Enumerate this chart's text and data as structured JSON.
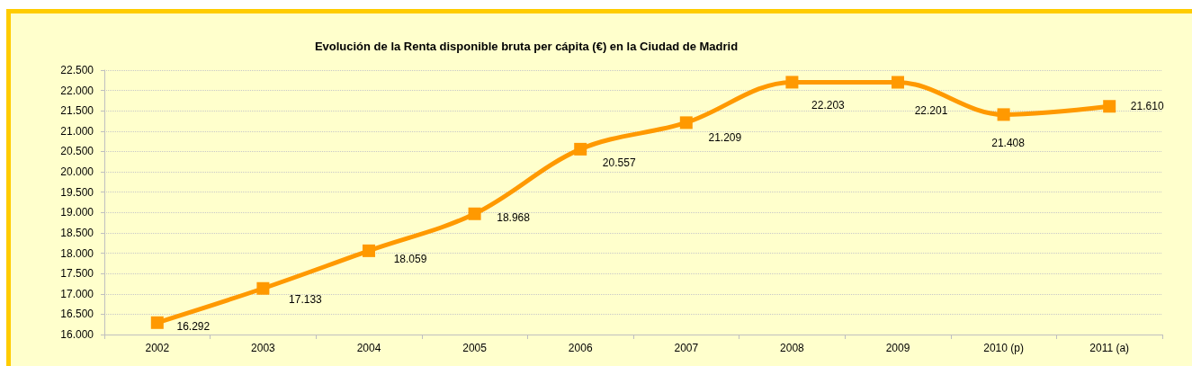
{
  "chart_data": {
    "type": "line",
    "title": "Evolución de la Renta disponible bruta per cápita (€) en la Ciudad de Madrid",
    "categories": [
      "2002",
      "2003",
      "2004",
      "2005",
      "2006",
      "2007",
      "2008",
      "2009",
      "2010 (p)",
      "2011 (a)"
    ],
    "series": [
      {
        "color": "#ff9900",
        "values": [
          16292,
          17133,
          18059,
          18968,
          20557,
          21209,
          22203,
          22201,
          21408,
          21610
        ],
        "value_labels": [
          "16.292",
          "17.133",
          "18.059",
          "18.968",
          "20.557",
          "21.209",
          "22.203",
          "22.201",
          "21.408",
          "21.610"
        ]
      }
    ],
    "ylim": [
      16000,
      22500
    ],
    "yticks": [
      {
        "value": 16000,
        "label": "16.000"
      },
      {
        "value": 16500,
        "label": "16.500"
      },
      {
        "value": 17000,
        "label": "17.000"
      },
      {
        "value": 17500,
        "label": "17.500"
      },
      {
        "value": 18000,
        "label": "18.000"
      },
      {
        "value": 18500,
        "label": "18.500"
      },
      {
        "value": 19000,
        "label": "19.000"
      },
      {
        "value": 19500,
        "label": "19.500"
      },
      {
        "value": 20000,
        "label": "20.000"
      },
      {
        "value": 20500,
        "label": "20.500"
      },
      {
        "value": 21000,
        "label": "21.000"
      },
      {
        "value": 21500,
        "label": "21.500"
      },
      {
        "value": 22000,
        "label": "22.000"
      },
      {
        "value": 22500,
        "label": "22.500"
      }
    ],
    "grid": "y",
    "marker": "square",
    "line_style": "solid"
  }
}
